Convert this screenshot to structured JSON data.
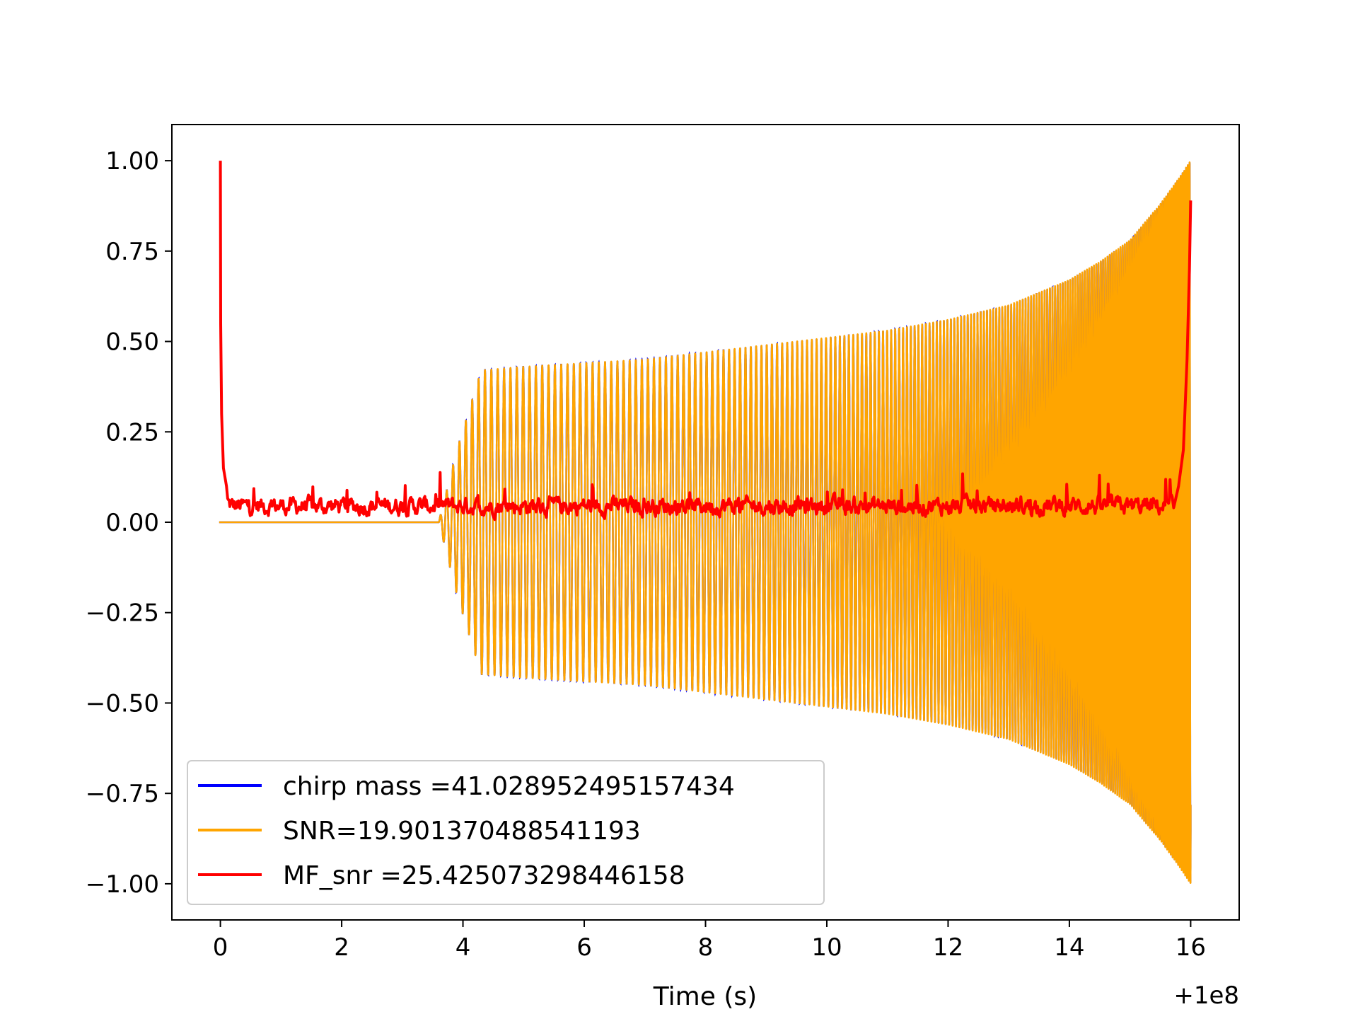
{
  "chart_data": {
    "type": "line",
    "title": "",
    "xlabel": "Time (s)",
    "ylabel": "",
    "x_offset_text": "+1e8",
    "xlim": [
      -0.8,
      16.8
    ],
    "ylim": [
      -1.1,
      1.1
    ],
    "xticks": [
      0,
      2,
      4,
      6,
      8,
      10,
      12,
      14,
      16
    ],
    "xtick_labels": [
      "0",
      "2",
      "4",
      "6",
      "8",
      "10",
      "12",
      "14",
      "16"
    ],
    "yticks": [
      1.0,
      0.75,
      0.5,
      0.25,
      0.0,
      -0.25,
      -0.5,
      -0.75,
      -1.0
    ],
    "ytick_labels": [
      "1.00",
      "0.75",
      "0.50",
      "0.25",
      "0.00",
      "−0.25",
      "−0.50",
      "−0.75",
      "−1.00"
    ],
    "legend_position": "lower-left",
    "series": [
      {
        "name": "chirp mass =41.028952495157434",
        "color": "#0000ff",
        "description": "waveform template, overdrawn by the SNR trace"
      },
      {
        "name": "SNR=19.901370488541193",
        "color": "#ffa500",
        "description": "chirp waveform: flat 0 until t≈3.6 s, then oscillates with envelope rising from ~0.42 to 1.00 at t≈16 s",
        "envelope": {
          "x": [
            3.6,
            3.9,
            4.3,
            5,
            6,
            7,
            8,
            9,
            10,
            11,
            12,
            13,
            14,
            14.5,
            15,
            15.5,
            15.8,
            16.0
          ],
          "y": [
            0.0,
            0.2,
            0.42,
            0.43,
            0.44,
            0.45,
            0.47,
            0.49,
            0.51,
            0.53,
            0.56,
            0.6,
            0.67,
            0.72,
            0.78,
            0.88,
            0.95,
            1.0
          ]
        }
      },
      {
        "name": "MF_snr =25.425073298446158",
        "color": "#ff0000",
        "description": "matched-filter SNR: spike 1.00 at t=0, decays quickly, noisy ~0.02–0.12 baseline, rises to 0.89 at t≈16",
        "x": [
          0.0,
          0.02,
          0.05,
          0.1,
          0.2,
          3.5,
          15.7,
          15.85,
          15.95,
          16.0
        ],
        "y": [
          1.0,
          0.4,
          0.15,
          0.1,
          0.05,
          0.03,
          0.05,
          0.2,
          0.6,
          0.89
        ]
      }
    ]
  }
}
